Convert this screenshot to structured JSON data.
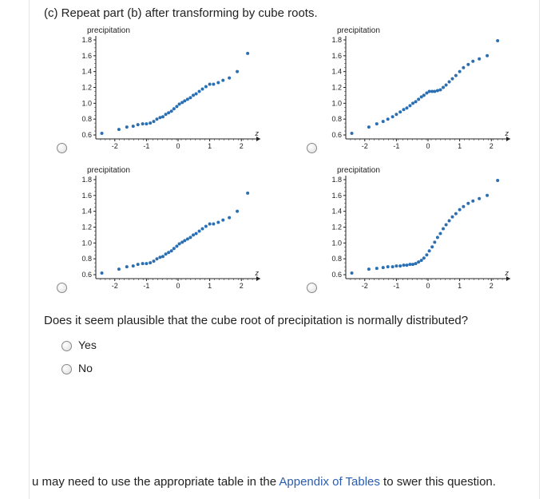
{
  "heading": "(c) Repeat part (b) after transforming by cube roots.",
  "chart": {
    "ylabel": "precipitation",
    "xlabel": "z",
    "xlim": [
      -2.6,
      2.6
    ],
    "ylim": [
      0.55,
      1.85
    ],
    "xticks": [
      -2,
      -1,
      0,
      1,
      2
    ],
    "yticks": [
      0.6,
      0.8,
      1.0,
      1.2,
      1.4,
      1.6,
      1.8
    ],
    "point_color": "#2b6fb3",
    "axis_color": "#222222",
    "tick_color": "#222222",
    "bg_color": "#ffffff",
    "label_fontsize": 10,
    "tick_fontsize": 9,
    "point_radius": 2.0
  },
  "plots": {
    "tl": [
      [
        -2.41,
        0.62
      ],
      [
        -1.87,
        0.67
      ],
      [
        -1.62,
        0.7
      ],
      [
        -1.42,
        0.71
      ],
      [
        -1.27,
        0.73
      ],
      [
        -1.12,
        0.74
      ],
      [
        -1.0,
        0.74
      ],
      [
        -0.88,
        0.75
      ],
      [
        -0.77,
        0.77
      ],
      [
        -0.67,
        0.8
      ],
      [
        -0.57,
        0.82
      ],
      [
        -0.48,
        0.83
      ],
      [
        -0.39,
        0.86
      ],
      [
        -0.3,
        0.88
      ],
      [
        -0.21,
        0.9
      ],
      [
        -0.13,
        0.93
      ],
      [
        -0.04,
        0.96
      ],
      [
        0.04,
        0.99
      ],
      [
        0.13,
        1.01
      ],
      [
        0.21,
        1.03
      ],
      [
        0.3,
        1.05
      ],
      [
        0.39,
        1.07
      ],
      [
        0.48,
        1.1
      ],
      [
        0.57,
        1.12
      ],
      [
        0.67,
        1.15
      ],
      [
        0.77,
        1.18
      ],
      [
        0.88,
        1.21
      ],
      [
        1.0,
        1.24
      ],
      [
        1.12,
        1.24
      ],
      [
        1.27,
        1.26
      ],
      [
        1.42,
        1.29
      ],
      [
        1.62,
        1.32
      ],
      [
        1.87,
        1.4
      ],
      [
        2.2,
        1.63
      ]
    ],
    "tr": [
      [
        -2.41,
        0.62
      ],
      [
        -1.87,
        0.7
      ],
      [
        -1.62,
        0.74
      ],
      [
        -1.42,
        0.77
      ],
      [
        -1.27,
        0.8
      ],
      [
        -1.12,
        0.83
      ],
      [
        -1.0,
        0.86
      ],
      [
        -0.88,
        0.89
      ],
      [
        -0.77,
        0.92
      ],
      [
        -0.67,
        0.94
      ],
      [
        -0.57,
        0.97
      ],
      [
        -0.48,
        1.0
      ],
      [
        -0.39,
        1.02
      ],
      [
        -0.3,
        1.05
      ],
      [
        -0.21,
        1.08
      ],
      [
        -0.13,
        1.1
      ],
      [
        -0.04,
        1.13
      ],
      [
        0.04,
        1.15
      ],
      [
        0.13,
        1.15
      ],
      [
        0.21,
        1.15
      ],
      [
        0.3,
        1.16
      ],
      [
        0.39,
        1.17
      ],
      [
        0.48,
        1.2
      ],
      [
        0.57,
        1.23
      ],
      [
        0.67,
        1.27
      ],
      [
        0.77,
        1.31
      ],
      [
        0.88,
        1.35
      ],
      [
        1.0,
        1.4
      ],
      [
        1.12,
        1.45
      ],
      [
        1.27,
        1.49
      ],
      [
        1.42,
        1.53
      ],
      [
        1.62,
        1.56
      ],
      [
        1.87,
        1.6
      ],
      [
        2.2,
        1.79
      ]
    ],
    "bl": [
      [
        -2.41,
        0.62
      ],
      [
        -1.87,
        0.67
      ],
      [
        -1.62,
        0.7
      ],
      [
        -1.42,
        0.71
      ],
      [
        -1.27,
        0.73
      ],
      [
        -1.12,
        0.74
      ],
      [
        -1.0,
        0.74
      ],
      [
        -0.88,
        0.75
      ],
      [
        -0.77,
        0.77
      ],
      [
        -0.67,
        0.8
      ],
      [
        -0.57,
        0.82
      ],
      [
        -0.48,
        0.83
      ],
      [
        -0.39,
        0.86
      ],
      [
        -0.3,
        0.88
      ],
      [
        -0.21,
        0.9
      ],
      [
        -0.13,
        0.93
      ],
      [
        -0.04,
        0.96
      ],
      [
        0.04,
        0.99
      ],
      [
        0.13,
        1.01
      ],
      [
        0.21,
        1.03
      ],
      [
        0.3,
        1.05
      ],
      [
        0.39,
        1.07
      ],
      [
        0.48,
        1.1
      ],
      [
        0.57,
        1.12
      ],
      [
        0.67,
        1.15
      ],
      [
        0.77,
        1.18
      ],
      [
        0.88,
        1.21
      ],
      [
        1.0,
        1.24
      ],
      [
        1.12,
        1.24
      ],
      [
        1.27,
        1.26
      ],
      [
        1.42,
        1.29
      ],
      [
        1.62,
        1.32
      ],
      [
        1.87,
        1.4
      ],
      [
        2.2,
        1.63
      ]
    ],
    "br": [
      [
        -2.41,
        0.62
      ],
      [
        -1.87,
        0.67
      ],
      [
        -1.62,
        0.68
      ],
      [
        -1.42,
        0.69
      ],
      [
        -1.27,
        0.7
      ],
      [
        -1.12,
        0.7
      ],
      [
        -1.0,
        0.71
      ],
      [
        -0.88,
        0.71
      ],
      [
        -0.77,
        0.72
      ],
      [
        -0.67,
        0.72
      ],
      [
        -0.57,
        0.73
      ],
      [
        -0.48,
        0.73
      ],
      [
        -0.39,
        0.74
      ],
      [
        -0.3,
        0.76
      ],
      [
        -0.21,
        0.78
      ],
      [
        -0.13,
        0.81
      ],
      [
        -0.04,
        0.85
      ],
      [
        0.04,
        0.9
      ],
      [
        0.13,
        0.95
      ],
      [
        0.21,
        1.01
      ],
      [
        0.3,
        1.07
      ],
      [
        0.39,
        1.12
      ],
      [
        0.48,
        1.18
      ],
      [
        0.57,
        1.23
      ],
      [
        0.67,
        1.28
      ],
      [
        0.77,
        1.33
      ],
      [
        0.88,
        1.37
      ],
      [
        1.0,
        1.42
      ],
      [
        1.12,
        1.46
      ],
      [
        1.27,
        1.5
      ],
      [
        1.42,
        1.53
      ],
      [
        1.62,
        1.56
      ],
      [
        1.87,
        1.6
      ],
      [
        2.2,
        1.79
      ]
    ]
  },
  "question": "Does it seem plausible that the cube root of precipitation is normally distributed?",
  "options": {
    "yes": "Yes",
    "no": "No"
  },
  "hint_pre": "u may need to use the appropriate table in the ",
  "hint_link": "Appendix of Tables",
  "hint_post": " to swer this question."
}
